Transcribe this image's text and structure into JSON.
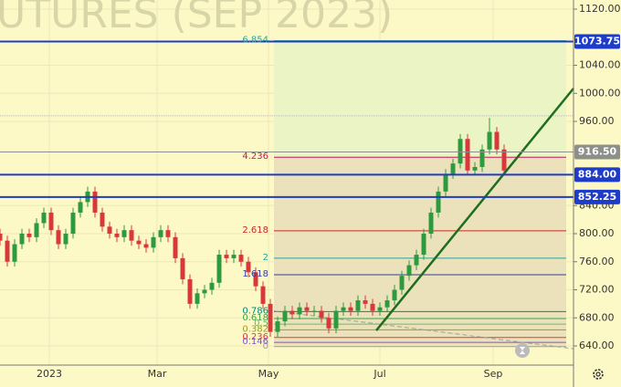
{
  "chart_data": {
    "type": "candlestick",
    "watermark": "UTURES (SEP 2023)",
    "x": [
      -27,
      -23,
      -19,
      -15,
      -11,
      -7,
      -3,
      1,
      5,
      9,
      13,
      17,
      21,
      25,
      29,
      33,
      37,
      41,
      45,
      49,
      53,
      57,
      61,
      65,
      69,
      73,
      77,
      81,
      85,
      89,
      93,
      97,
      101,
      105,
      109,
      113,
      117,
      121,
      125,
      129,
      133,
      137,
      141,
      145,
      149,
      153,
      157,
      161,
      165,
      169,
      173,
      177,
      181,
      185,
      189,
      193,
      197,
      201,
      205,
      209,
      213,
      217,
      221,
      225,
      229,
      233,
      237,
      241,
      245,
      249
    ],
    "candles": [
      [
        800,
        807,
        783,
        790
      ],
      [
        790,
        797,
        753,
        760
      ],
      [
        760,
        792,
        753,
        785
      ],
      [
        785,
        807,
        778,
        800
      ],
      [
        800,
        807,
        788,
        795
      ],
      [
        795,
        822,
        788,
        815
      ],
      [
        815,
        837,
        808,
        830
      ],
      [
        830,
        837,
        798,
        805
      ],
      [
        805,
        812,
        778,
        785
      ],
      [
        785,
        807,
        778,
        800
      ],
      [
        800,
        837,
        793,
        830
      ],
      [
        830,
        852,
        823,
        845
      ],
      [
        845,
        867,
        838,
        860
      ],
      [
        860,
        867,
        823,
        830
      ],
      [
        830,
        837,
        803,
        810
      ],
      [
        810,
        817,
        793,
        800
      ],
      [
        800,
        807,
        788,
        795
      ],
      [
        795,
        812,
        788,
        805
      ],
      [
        805,
        812,
        783,
        790
      ],
      [
        790,
        797,
        778,
        785
      ],
      [
        785,
        792,
        773,
        780
      ],
      [
        780,
        802,
        773,
        795
      ],
      [
        795,
        812,
        788,
        805
      ],
      [
        805,
        812,
        788,
        795
      ],
      [
        795,
        802,
        758,
        765
      ],
      [
        765,
        772,
        728,
        735
      ],
      [
        735,
        742,
        693,
        700
      ],
      [
        700,
        722,
        693,
        715
      ],
      [
        715,
        727,
        708,
        720
      ],
      [
        720,
        737,
        713,
        730
      ],
      [
        730,
        777,
        723,
        770
      ],
      [
        770,
        777,
        758,
        765
      ],
      [
        765,
        777,
        758,
        770
      ],
      [
        770,
        777,
        753,
        760
      ],
      [
        760,
        767,
        738,
        745
      ],
      [
        745,
        752,
        718,
        725
      ],
      [
        725,
        732,
        693,
        700
      ],
      [
        700,
        707,
        653,
        660
      ],
      [
        660,
        682,
        653,
        675
      ],
      [
        675,
        697,
        668,
        690
      ],
      [
        690,
        697,
        678,
        685
      ],
      [
        685,
        702,
        678,
        695
      ],
      [
        695,
        702,
        683,
        690
      ],
      [
        690,
        697,
        683,
        690
      ],
      [
        690,
        697,
        673,
        680
      ],
      [
        680,
        687,
        658,
        665
      ],
      [
        665,
        697,
        658,
        690
      ],
      [
        690,
        702,
        683,
        695
      ],
      [
        695,
        702,
        683,
        690
      ],
      [
        690,
        712,
        683,
        705
      ],
      [
        705,
        712,
        693,
        700
      ],
      [
        700,
        707,
        683,
        690
      ],
      [
        690,
        702,
        683,
        695
      ],
      [
        695,
        712,
        688,
        705
      ],
      [
        705,
        727,
        698,
        720
      ],
      [
        720,
        747,
        713,
        740
      ],
      [
        740,
        762,
        733,
        755
      ],
      [
        755,
        777,
        748,
        770
      ],
      [
        770,
        807,
        763,
        800
      ],
      [
        800,
        837,
        793,
        830
      ],
      [
        830,
        867,
        823,
        860
      ],
      [
        860,
        892,
        853,
        885
      ],
      [
        885,
        907,
        878,
        900
      ],
      [
        900,
        942,
        893,
        935
      ],
      [
        935,
        942,
        883,
        890
      ],
      [
        890,
        902,
        883,
        895
      ],
      [
        895,
        927,
        888,
        920
      ],
      [
        920,
        965,
        913,
        945
      ],
      [
        945,
        952,
        913,
        920
      ],
      [
        920,
        927,
        883,
        890
      ]
    ],
    "up_color": "#2e9a3e",
    "down_color": "#d8383a",
    "xlim": [
      -27,
      287
    ],
    "xticks": [
      {
        "value": 0,
        "label": "2023"
      },
      {
        "value": 59,
        "label": "Mar"
      },
      {
        "value": 120,
        "label": "May"
      },
      {
        "value": 181,
        "label": "Jul"
      },
      {
        "value": 243,
        "label": "Sep"
      }
    ],
    "ylim": [
      640,
      1120
    ],
    "yticks": [
      {
        "value": 1120,
        "label": "1120.00"
      },
      {
        "value": 1040,
        "label": "1040.00"
      },
      {
        "value": 1000,
        "label": "1000.00"
      },
      {
        "value": 960,
        "label": "960.00"
      },
      {
        "value": 840,
        "label": "840.00"
      },
      {
        "value": 800,
        "label": "800.00"
      },
      {
        "value": 760,
        "label": "760.00"
      },
      {
        "value": 720,
        "label": "720.00"
      },
      {
        "value": 680,
        "label": "680.00"
      },
      {
        "value": 640,
        "label": "640.00"
      }
    ],
    "grid": true,
    "faint_lines": [
      968
    ],
    "levels": [
      {
        "value": 1073.75,
        "label": "1073.75",
        "color": "#1e3cc8"
      },
      {
        "value": 916.5,
        "label": "916.50",
        "color": "#8c9088"
      },
      {
        "value": 884,
        "label": "884.00",
        "color": "#1e3cc8"
      },
      {
        "value": 852.25,
        "label": "852.25",
        "color": "#1e3cc8"
      }
    ],
    "fib": {
      "x": [
        123,
        283
      ],
      "upper_fill": "#eaf4c4",
      "lower_fill": "#ebe2bb",
      "levels": [
        {
          "label": 6.854,
          "price": 1075,
          "color": "#26a69a"
        },
        {
          "label": 4.236,
          "price": 909,
          "color": "#c2185b"
        },
        {
          "label": 2.618,
          "price": 804,
          "color": "#c62828"
        },
        {
          "label": 2,
          "price": 765,
          "color": "#26a69a"
        },
        {
          "label": 1.618,
          "price": 741.5,
          "color": "#303f9f"
        },
        {
          "label": 0.786,
          "price": 689,
          "color": "#00897b"
        },
        {
          "label": 0.618,
          "price": 679,
          "color": "#43a047"
        },
        {
          "label": 0.5,
          "price": 671,
          "color": "#66bb6a"
        },
        {
          "label": 0.382,
          "price": 663,
          "color": "#9e9d24"
        },
        {
          "label": 0.236,
          "price": 652,
          "color": "#e53935"
        },
        {
          "label": 0.146,
          "price": 645,
          "color": "#7e57c2"
        },
        {
          "label": 0,
          "price": 639,
          "color": "#9e9e9e"
        }
      ]
    },
    "trendline": {
      "x": [
        179,
        287
      ],
      "y": [
        662,
        1007
      ],
      "color": "#1f6e1f"
    },
    "decay_line": {
      "x": [
        123,
        287
      ],
      "y": [
        690,
        636
      ],
      "color": "#a0a0a0"
    }
  }
}
